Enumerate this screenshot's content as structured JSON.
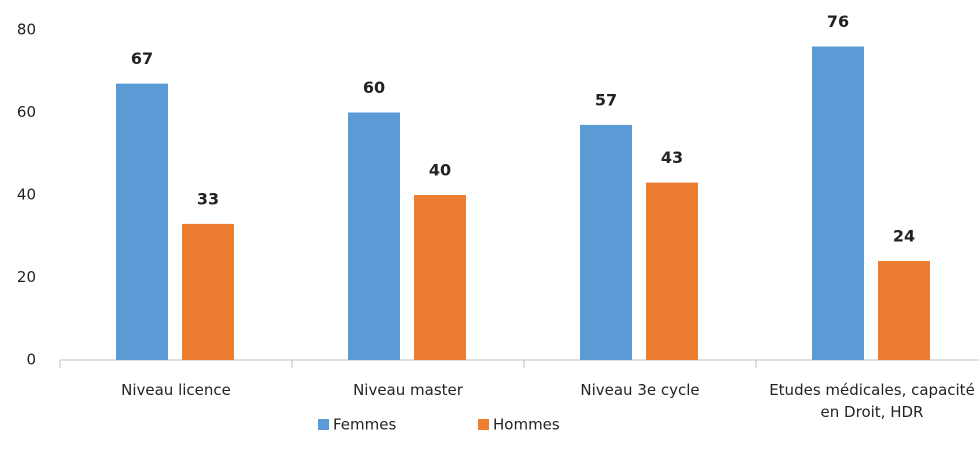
{
  "chart_data": {
    "type": "bar",
    "categories": [
      "Niveau licence",
      "Niveau master",
      "Niveau 3e cycle",
      "Etudes médicales, capacité en Droit, HDR"
    ],
    "series": [
      {
        "name": "Femmes",
        "color": "#5b9bd5",
        "values": [
          67,
          60,
          57,
          76
        ]
      },
      {
        "name": "Hommes",
        "color": "#ed7d31",
        "values": [
          33,
          40,
          43,
          24
        ]
      }
    ],
    "ylim": [
      0,
      80
    ],
    "yticks": [
      0,
      20,
      40,
      60,
      80
    ],
    "grid": false,
    "legend": "bottom"
  }
}
